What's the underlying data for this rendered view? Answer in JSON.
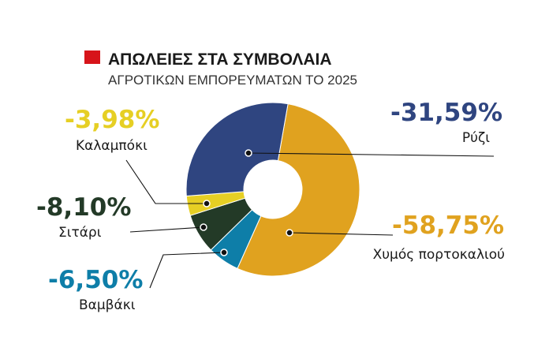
{
  "chart_data": {
    "type": "pie",
    "title": "ΑΠΩΛΕΙΕΣ ΣΤΑ ΣΥΜΒΟΛΑΙΑ",
    "subtitle": "ΑΓΡΟΤΙΚΩΝ ΕΜΠΟΡΕΥΜΑΤΩΝ ΤΟ 2025",
    "title_marker_color": "#d7141a",
    "slices": [
      {
        "key": "juice",
        "label": "Χυμός πορτοκαλιού",
        "value": -58.75,
        "value_label": "-58,75%",
        "color": "#e0a21f"
      },
      {
        "key": "cotton",
        "label": "Βαμβάκι",
        "value": -6.5,
        "value_label": "-6,50%",
        "color": "#0e7ea8"
      },
      {
        "key": "wheat",
        "label": "Σιτάρι",
        "value": -8.1,
        "value_label": "-8,10%",
        "color": "#233a27"
      },
      {
        "key": "corn",
        "label": "Καλαμπόκι",
        "value": -3.98,
        "value_label": "-3,98%",
        "color": "#e6cf24"
      },
      {
        "key": "rice",
        "label": "Ρύζι",
        "value": -31.59,
        "value_label": "-31,59%",
        "color": "#2f4580"
      }
    ]
  }
}
